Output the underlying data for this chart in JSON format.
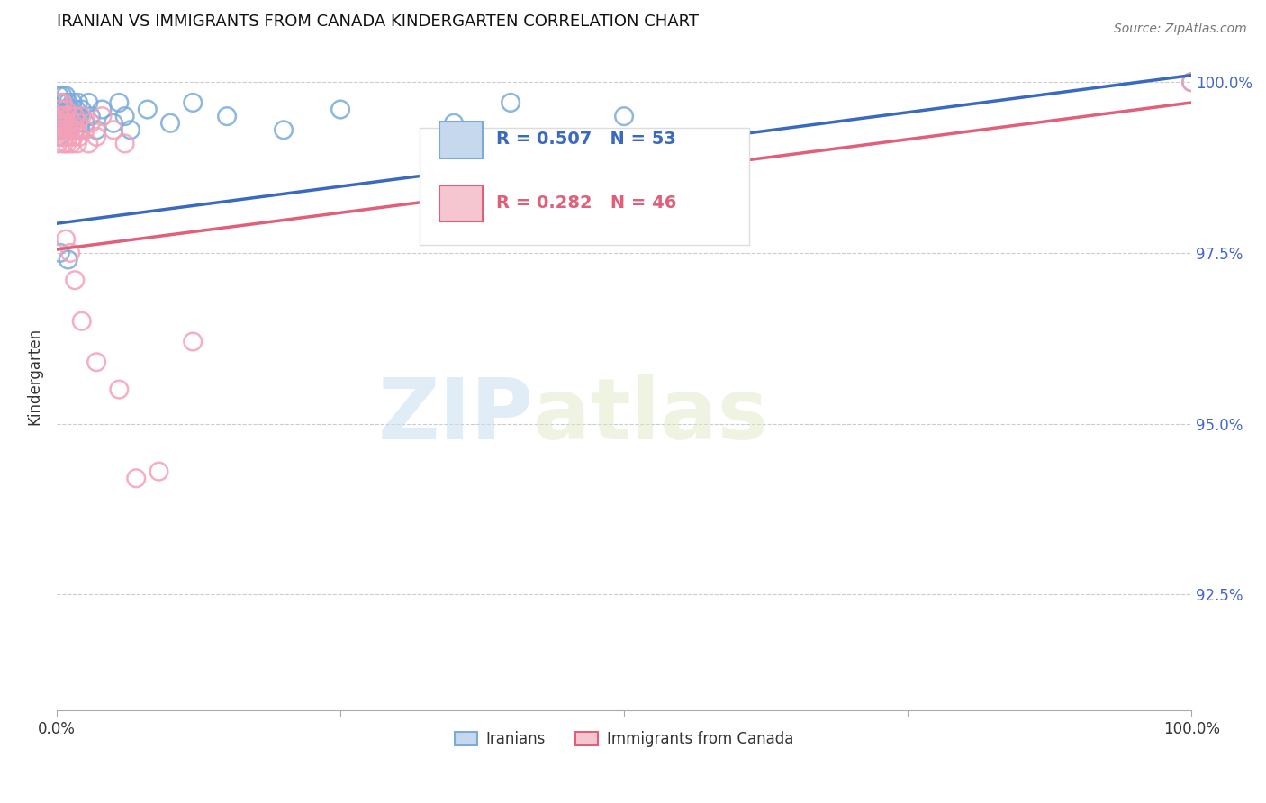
{
  "title": "IRANIAN VS IMMIGRANTS FROM CANADA KINDERGARTEN CORRELATION CHART",
  "source": "Source: ZipAtlas.com",
  "ylabel": "Kindergarten",
  "ytick_labels": [
    "100.0%",
    "97.5%",
    "95.0%",
    "92.5%"
  ],
  "ytick_values": [
    1.0,
    0.975,
    0.95,
    0.925
  ],
  "xlim": [
    0.0,
    1.0
  ],
  "ylim": [
    0.908,
    1.006
  ],
  "legend_label_blue": "Iranians",
  "legend_label_pink": "Immigrants from Canada",
  "blue_color": "#7aabdc",
  "pink_color": "#f4a0b8",
  "blue_line_color": "#3a6abf",
  "pink_line_color": "#e0607a",
  "watermark_zip": "ZIP",
  "watermark_atlas": "atlas",
  "iranians_x": [
    0.001,
    0.002,
    0.002,
    0.003,
    0.003,
    0.004,
    0.004,
    0.005,
    0.005,
    0.006,
    0.006,
    0.007,
    0.007,
    0.008,
    0.008,
    0.009,
    0.009,
    0.01,
    0.01,
    0.011,
    0.012,
    0.012,
    0.013,
    0.014,
    0.015,
    0.016,
    0.017,
    0.018,
    0.019,
    0.02,
    0.021,
    0.022,
    0.025,
    0.028,
    0.03,
    0.035,
    0.04,
    0.05,
    0.055,
    0.06,
    0.065,
    0.08,
    0.1,
    0.12,
    0.15,
    0.2,
    0.25,
    0.35,
    0.4,
    0.5,
    0.003,
    0.01,
    1.0
  ],
  "iranians_y": [
    0.992,
    0.995,
    0.998,
    0.993,
    0.996,
    0.994,
    0.997,
    0.995,
    0.998,
    0.993,
    0.996,
    0.994,
    0.997,
    0.995,
    0.998,
    0.993,
    0.996,
    0.994,
    0.997,
    0.995,
    0.993,
    0.996,
    0.994,
    0.997,
    0.995,
    0.993,
    0.996,
    0.994,
    0.997,
    0.995,
    0.993,
    0.996,
    0.994,
    0.997,
    0.995,
    0.993,
    0.996,
    0.994,
    0.997,
    0.995,
    0.993,
    0.996,
    0.994,
    0.997,
    0.995,
    0.993,
    0.996,
    0.994,
    0.997,
    0.995,
    0.975,
    0.974,
    1.0
  ],
  "canada_x": [
    0.001,
    0.002,
    0.002,
    0.003,
    0.003,
    0.004,
    0.004,
    0.005,
    0.005,
    0.006,
    0.006,
    0.007,
    0.007,
    0.008,
    0.008,
    0.009,
    0.01,
    0.01,
    0.011,
    0.012,
    0.013,
    0.014,
    0.015,
    0.016,
    0.017,
    0.018,
    0.019,
    0.02,
    0.022,
    0.025,
    0.028,
    0.03,
    0.035,
    0.04,
    0.05,
    0.06,
    0.008,
    0.012,
    0.016,
    0.022,
    0.035,
    0.055,
    0.07,
    0.09,
    0.12,
    1.0
  ],
  "canada_y": [
    0.991,
    0.994,
    0.997,
    0.993,
    0.996,
    0.992,
    0.995,
    0.994,
    0.997,
    0.991,
    0.994,
    0.992,
    0.995,
    0.993,
    0.996,
    0.991,
    0.994,
    0.992,
    0.995,
    0.993,
    0.991,
    0.994,
    0.992,
    0.995,
    0.993,
    0.991,
    0.994,
    0.992,
    0.995,
    0.993,
    0.991,
    0.994,
    0.992,
    0.995,
    0.993,
    0.991,
    0.977,
    0.975,
    0.971,
    0.965,
    0.959,
    0.955,
    0.942,
    0.943,
    0.962,
    1.0
  ]
}
